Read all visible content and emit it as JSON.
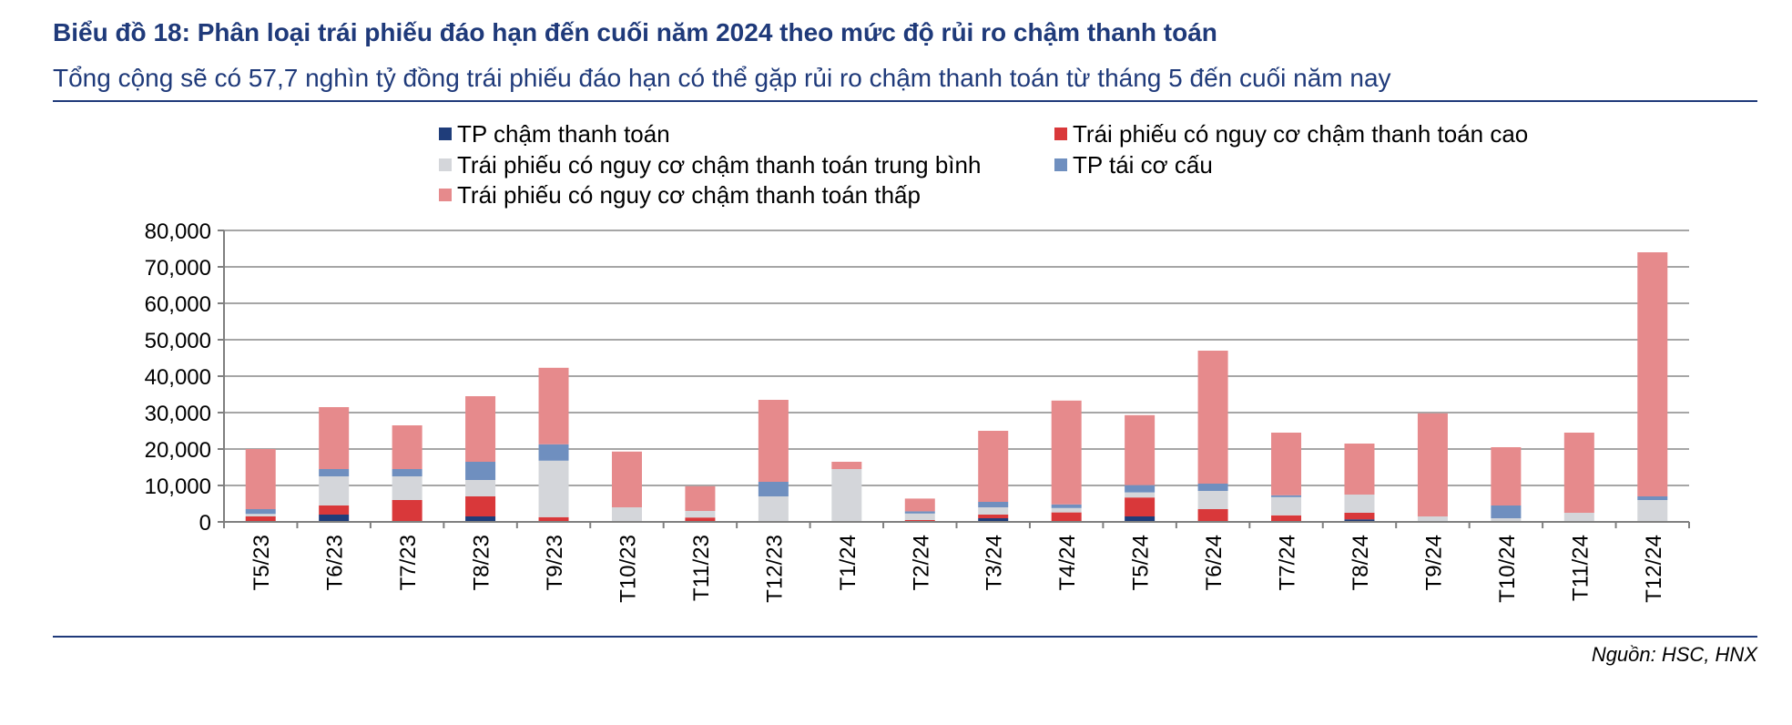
{
  "header": {
    "title": "Biểu đồ 18: Phân loại trái phiếu đáo hạn đến cuối năm 2024 theo mức độ rủi ro chậm thanh toán",
    "subtitle": "Tổng cộng sẽ có 57,7 nghìn tỷ đồng trái phiếu đáo hạn có thể gặp rủi ro chậm thanh toán từ tháng 5 đến cuối năm nay"
  },
  "footer": {
    "source": "Nguồn: HSC, HNX"
  },
  "chart_data": {
    "type": "bar",
    "stacked": true,
    "categories": [
      "T5/23",
      "T6/23",
      "T7/23",
      "T8/23",
      "T9/23",
      "T10/23",
      "T11/23",
      "T12/23",
      "T1/24",
      "T2/24",
      "T3/24",
      "T4/24",
      "T5/24",
      "T6/24",
      "T7/24",
      "T8/24",
      "T9/24",
      "T10/24",
      "T11/24",
      "T12/24"
    ],
    "series": [
      {
        "name": "TP chậm thanh toán",
        "color": "#1f3d7a",
        "values": [
          0,
          2000,
          0,
          1500,
          0,
          0,
          0,
          0,
          0,
          0,
          1000,
          0,
          1500,
          0,
          0,
          700,
          0,
          0,
          0,
          0
        ]
      },
      {
        "name": "Trái phiếu có nguy cơ chậm thanh toán cao",
        "color": "#d9383a",
        "values": [
          1500,
          2500,
          6000,
          5500,
          1300,
          0,
          1200,
          0,
          0,
          500,
          1000,
          2600,
          5200,
          3500,
          1800,
          1800,
          0,
          0,
          0,
          0
        ]
      },
      {
        "name": "Trái phiếu có nguy cơ chậm thanh toán trung bình",
        "color": "#d4d6da",
        "values": [
          700,
          8000,
          6500,
          4500,
          15500,
          4000,
          1800,
          7000,
          14500,
          1800,
          2000,
          1200,
          1400,
          5000,
          5000,
          5000,
          1500,
          1000,
          2500,
          6000
        ]
      },
      {
        "name": "TP tái cơ cấu",
        "color": "#6f8fbf",
        "values": [
          1300,
          2000,
          2000,
          5000,
          4500,
          0,
          0,
          4000,
          0,
          600,
          1500,
          1000,
          2000,
          2000,
          500,
          0,
          0,
          3500,
          0,
          1000
        ]
      },
      {
        "name": "Trái phiếu có nguy cơ chậm thanh toán thấp",
        "color": "#e68a8c",
        "values": [
          16500,
          17000,
          12000,
          18000,
          21000,
          15300,
          6800,
          22500,
          2000,
          3500,
          19500,
          28500,
          19200,
          36500,
          17200,
          14000,
          28300,
          16000,
          22000,
          67000
        ]
      }
    ],
    "ylim": [
      0,
      80000
    ],
    "yticks": [
      "0",
      "10,000",
      "20,000",
      "30,000",
      "40,000",
      "50,000",
      "60,000",
      "70,000",
      "80,000"
    ],
    "grid": true,
    "legend_position": "top"
  }
}
